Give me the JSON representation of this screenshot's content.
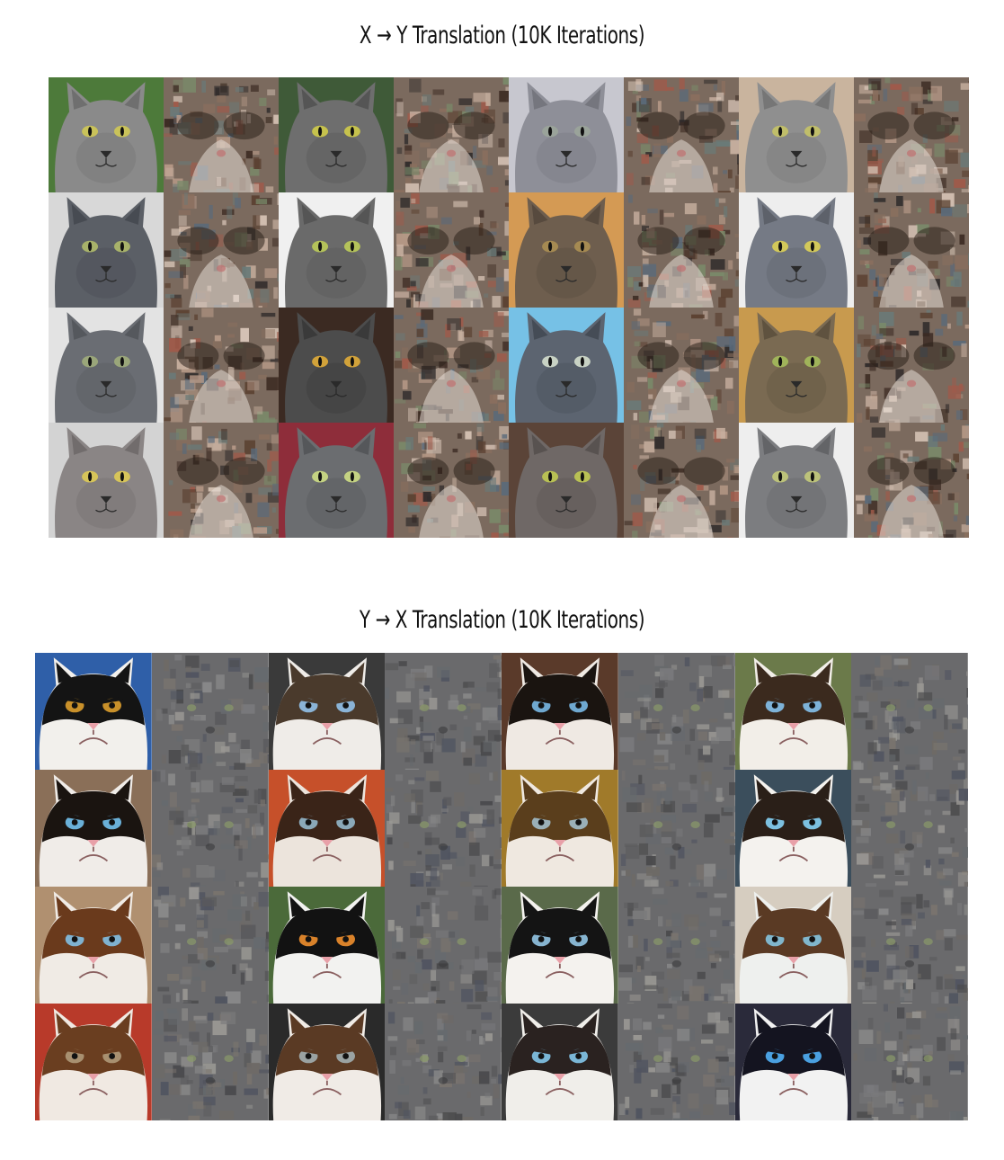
{
  "panels": [
    {
      "title": "X → Y Translation (10K Iterations)",
      "kind": "xy",
      "rows": [
        [
          {
            "type": "real",
            "bg": "#4d7a3a",
            "fur": "#8a8a8a",
            "dark": "#6f6f6f",
            "eye": "#c9c25a"
          },
          {
            "type": "fake"
          },
          {
            "type": "real",
            "bg": "#3f5a38",
            "fur": "#6e6e6e",
            "dark": "#555555",
            "eye": "#c6c24d"
          },
          {
            "type": "fake"
          },
          {
            "type": "real",
            "bg": "#c7c7cf",
            "fur": "#8e8f98",
            "dark": "#75767e",
            "eye": "#9aa39a"
          },
          {
            "type": "fake"
          },
          {
            "type": "real",
            "bg": "#c9b49e",
            "fur": "#8f8f8f",
            "dark": "#767676",
            "eye": "#c0be6a"
          },
          {
            "type": "fake"
          }
        ],
        [
          {
            "type": "real",
            "bg": "#d8d8d8",
            "fur": "#5b5f66",
            "dark": "#474b52",
            "eye": "#a8b26a"
          },
          {
            "type": "fake"
          },
          {
            "type": "real",
            "bg": "#f0f0f0",
            "fur": "#6a6a6a",
            "dark": "#555555",
            "eye": "#b4c25a"
          },
          {
            "type": "fake"
          },
          {
            "type": "real",
            "bg": "#d49a54",
            "fur": "#6e5e4e",
            "dark": "#574a3e",
            "eye": "#a58a52"
          },
          {
            "type": "fake"
          },
          {
            "type": "real",
            "bg": "#eeeeee",
            "fur": "#757a85",
            "dark": "#5d616a",
            "eye": "#d2c85a"
          },
          {
            "type": "fake"
          }
        ],
        [
          {
            "type": "real",
            "bg": "#e3e3e3",
            "fur": "#6a6d73",
            "dark": "#55585d",
            "eye": "#9aa67a"
          },
          {
            "type": "fake"
          },
          {
            "type": "real",
            "bg": "#3b2a22",
            "fur": "#4c4c4c",
            "dark": "#3a3a3a",
            "eye": "#d1a23a"
          },
          {
            "type": "fake"
          },
          {
            "type": "real",
            "bg": "#76c1e6",
            "fur": "#5c6470",
            "dark": "#454c56",
            "eye": "#c8d2c4"
          },
          {
            "type": "fake"
          },
          {
            "type": "real",
            "bg": "#c89a4e",
            "fur": "#7a6a52",
            "dark": "#5f523f",
            "eye": "#a0b35a"
          },
          {
            "type": "fake"
          }
        ],
        [
          {
            "type": "real",
            "bg": "#d3d3d3",
            "fur": "#8a8585",
            "dark": "#716c6c",
            "eye": "#d6c45a"
          },
          {
            "type": "fake"
          },
          {
            "type": "real",
            "bg": "#8e2d3a",
            "fur": "#6b6d70",
            "dark": "#55575a",
            "eye": "#c4d282"
          },
          {
            "type": "fake"
          },
          {
            "type": "real",
            "bg": "#5b4438",
            "fur": "#6f6866",
            "dark": "#585250",
            "eye": "#b8c054"
          },
          {
            "type": "fake"
          },
          {
            "type": "real",
            "bg": "#eeeeee",
            "fur": "#7c7d80",
            "dark": "#636467",
            "eye": "#bcc27a"
          },
          {
            "type": "fake"
          }
        ]
      ]
    },
    {
      "title": "Y → X Translation (10K Iterations)",
      "kind": "yx",
      "rows": [
        [
          {
            "type": "real",
            "bg": "#2f5fa8",
            "mask": "#141414",
            "fur": "#f2f0ec",
            "eye": "#c8902a"
          },
          {
            "type": "fake"
          },
          {
            "type": "real",
            "bg": "#3a3a3a",
            "mask": "#4a3a2c",
            "fur": "#efece8",
            "eye": "#8ab3d6"
          },
          {
            "type": "fake"
          },
          {
            "type": "real",
            "bg": "#5a3a2a",
            "mask": "#1a1410",
            "fur": "#efe9e3",
            "eye": "#6fa8d0"
          },
          {
            "type": "fake"
          },
          {
            "type": "real",
            "bg": "#6b7a4a",
            "mask": "#3b2a1e",
            "fur": "#f2eee8",
            "eye": "#7db2d8"
          },
          {
            "type": "fake"
          }
        ],
        [
          {
            "type": "real",
            "bg": "#8a6f58",
            "mask": "#1a1410",
            "fur": "#f0ece8",
            "eye": "#6ab0d8"
          },
          {
            "type": "fake"
          },
          {
            "type": "real",
            "bg": "#c6502a",
            "mask": "#3a2418",
            "fur": "#ece4dc",
            "eye": "#8aa8b8"
          },
          {
            "type": "fake"
          },
          {
            "type": "real",
            "bg": "#a07a2a",
            "mask": "#5a3e1c",
            "fur": "#efe8e0",
            "eye": "#9ab0b8"
          },
          {
            "type": "fake"
          },
          {
            "type": "real",
            "bg": "#3b4e5c",
            "mask": "#2a1f18",
            "fur": "#f4f2ee",
            "eye": "#7cc0e0"
          },
          {
            "type": "fake"
          }
        ],
        [
          {
            "type": "real",
            "bg": "#b09070",
            "mask": "#6a3a1c",
            "fur": "#f0ebe5",
            "eye": "#7fb2d0"
          },
          {
            "type": "fake"
          },
          {
            "type": "real",
            "bg": "#4b6a3a",
            "mask": "#121212",
            "fur": "#f2f2f0",
            "eye": "#d9822a"
          },
          {
            "type": "fake"
          },
          {
            "type": "real",
            "bg": "#5a6a4a",
            "mask": "#141414",
            "fur": "#f4f2ee",
            "eye": "#86b4d0"
          },
          {
            "type": "fake"
          },
          {
            "type": "real",
            "bg": "#d6cdc0",
            "mask": "#5a3a24",
            "fur": "#eef0ee",
            "eye": "#80b6cc"
          },
          {
            "type": "fake"
          }
        ],
        [
          {
            "type": "real",
            "bg": "#b83a2a",
            "mask": "#6a3e20",
            "fur": "#f0e9e2",
            "eye": "#a89070"
          },
          {
            "type": "fake"
          },
          {
            "type": "real",
            "bg": "#2a2a2a",
            "mask": "#5a3a24",
            "fur": "#f0ebe6",
            "eye": "#9aa2a2"
          },
          {
            "type": "fake"
          },
          {
            "type": "real",
            "bg": "#3b3b3b",
            "mask": "#2a2220",
            "fur": "#f0eeea",
            "eye": "#7ab6d6"
          },
          {
            "type": "fake"
          },
          {
            "type": "real",
            "bg": "#2a2a3a",
            "mask": "#141420",
            "fur": "#f2f2f2",
            "eye": "#4aa0e0"
          },
          {
            "type": "fake"
          }
        ]
      ]
    }
  ]
}
